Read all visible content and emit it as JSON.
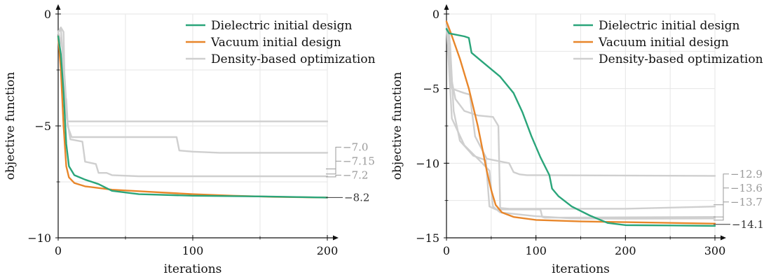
{
  "colors": {
    "dielectric": "#2aa57a",
    "vacuum": "#e8862a",
    "density": "#cfcfcf",
    "grid": "#e6e6e6",
    "axis": "#111111",
    "label_gray": "#9a9a9a",
    "label_dark": "#333333"
  },
  "chart_data": [
    {
      "type": "line",
      "xlabel": "iterations",
      "ylabel": "objective function",
      "xlim": [
        0,
        200
      ],
      "ylim": [
        -10,
        0
      ],
      "xticks": [
        0,
        100,
        200
      ],
      "xtick_labels": [
        "0",
        "100",
        "200"
      ],
      "yticks": [
        0,
        -5,
        -10
      ],
      "ytick_labels": [
        "0",
        "−5",
        "−10"
      ],
      "grid": true,
      "legend_position": "top-right",
      "series": [
        {
          "name": "Dielectric initial design",
          "color_key": "dielectric",
          "points": [
            [
              0,
              -1.0
            ],
            [
              2,
              -1.8
            ],
            [
              4,
              -3.5
            ],
            [
              6,
              -5.8
            ],
            [
              8,
              -6.8
            ],
            [
              12,
              -7.2
            ],
            [
              20,
              -7.4
            ],
            [
              30,
              -7.6
            ],
            [
              40,
              -7.9
            ],
            [
              60,
              -8.05
            ],
            [
              100,
              -8.12
            ],
            [
              150,
              -8.15
            ],
            [
              200,
              -8.2
            ]
          ]
        },
        {
          "name": "Vacuum initial design",
          "color_key": "vacuum",
          "points": [
            [
              0,
              -1.0
            ],
            [
              2,
              -2.5
            ],
            [
              4,
              -5.0
            ],
            [
              6,
              -6.8
            ],
            [
              8,
              -7.3
            ],
            [
              12,
              -7.55
            ],
            [
              20,
              -7.7
            ],
            [
              40,
              -7.85
            ],
            [
              70,
              -7.95
            ],
            [
              100,
              -8.05
            ],
            [
              130,
              -8.12
            ],
            [
              160,
              -8.17
            ],
            [
              200,
              -8.2
            ]
          ]
        },
        {
          "name": "Density-based optimization",
          "color_key": "density",
          "points": [
            [
              0,
              -0.8
            ],
            [
              2,
              -0.6
            ],
            [
              4,
              -0.8
            ],
            [
              5,
              -3.8
            ],
            [
              6,
              -3.8
            ],
            [
              7,
              -4.8
            ],
            [
              200,
              -4.8
            ]
          ]
        },
        {
          "name": "",
          "color_key": "density",
          "points": [
            [
              0,
              -0.8
            ],
            [
              2,
              -0.7
            ],
            [
              5,
              -3.0
            ],
            [
              7,
              -5.0
            ],
            [
              10,
              -5.5
            ],
            [
              88,
              -5.5
            ],
            [
              90,
              -6.1
            ],
            [
              100,
              -6.15
            ],
            [
              120,
              -6.2
            ],
            [
              200,
              -6.2
            ]
          ]
        },
        {
          "name": "",
          "color_key": "density",
          "points": [
            [
              0,
              -0.8
            ],
            [
              3,
              -1.5
            ],
            [
              6,
              -4.5
            ],
            [
              9,
              -5.6
            ],
            [
              18,
              -5.7
            ],
            [
              20,
              -6.6
            ],
            [
              28,
              -6.7
            ],
            [
              30,
              -7.1
            ],
            [
              36,
              -7.1
            ],
            [
              40,
              -7.2
            ],
            [
              60,
              -7.25
            ],
            [
              200,
              -7.25
            ]
          ]
        }
      ],
      "end_labels": [
        {
          "text": "−7.0",
          "value": -7.0,
          "color_key": "label_gray"
        },
        {
          "text": "−7.15",
          "value": -7.15,
          "color_key": "label_gray"
        },
        {
          "text": "−7.2",
          "value": -7.2,
          "color_key": "label_gray"
        },
        {
          "text": "−8.2",
          "value": -8.2,
          "color_key": "label_dark"
        }
      ]
    },
    {
      "type": "line",
      "xlabel": "iterations",
      "ylabel": "objective function",
      "xlim": [
        0,
        300
      ],
      "ylim": [
        -15,
        0
      ],
      "xticks": [
        0,
        100,
        200,
        300
      ],
      "xtick_labels": [
        "0",
        "100",
        "200",
        "300"
      ],
      "yticks": [
        0,
        -5,
        -10,
        -15
      ],
      "ytick_labels": [
        "0",
        "−5",
        "−10",
        "−15"
      ],
      "grid": true,
      "legend_position": "top-right",
      "series": [
        {
          "name": "Dielectric initial design",
          "color_key": "dielectric",
          "points": [
            [
              0,
              -1.0
            ],
            [
              3,
              -1.3
            ],
            [
              20,
              -1.5
            ],
            [
              25,
              -1.6
            ],
            [
              28,
              -2.6
            ],
            [
              40,
              -3.2
            ],
            [
              60,
              -4.2
            ],
            [
              75,
              -5.3
            ],
            [
              85,
              -6.6
            ],
            [
              95,
              -8.2
            ],
            [
              105,
              -9.6
            ],
            [
              115,
              -10.8
            ],
            [
              118,
              -11.7
            ],
            [
              125,
              -12.2
            ],
            [
              140,
              -12.9
            ],
            [
              160,
              -13.5
            ],
            [
              180,
              -14.0
            ],
            [
              200,
              -14.15
            ],
            [
              250,
              -14.17
            ],
            [
              300,
              -14.2
            ]
          ]
        },
        {
          "name": "Vacuum initial design",
          "color_key": "vacuum",
          "points": [
            [
              0,
              -0.5
            ],
            [
              5,
              -1.3
            ],
            [
              15,
              -3.0
            ],
            [
              25,
              -5.0
            ],
            [
              35,
              -7.5
            ],
            [
              45,
              -10.5
            ],
            [
              50,
              -11.8
            ],
            [
              55,
              -12.8
            ],
            [
              62,
              -13.3
            ],
            [
              75,
              -13.6
            ],
            [
              100,
              -13.8
            ],
            [
              150,
              -13.9
            ],
            [
              200,
              -13.95
            ],
            [
              300,
              -14.05
            ]
          ]
        },
        {
          "name": "Density-based optimization",
          "color_key": "density",
          "points": [
            [
              0,
              -0.7
            ],
            [
              3,
              -1.2
            ],
            [
              6,
              -4.5
            ],
            [
              10,
              -5.7
            ],
            [
              20,
              -6.5
            ],
            [
              35,
              -6.8
            ],
            [
              52,
              -6.9
            ],
            [
              58,
              -7.5
            ],
            [
              60,
              -13.0
            ],
            [
              70,
              -13.05
            ],
            [
              200,
              -13.05
            ],
            [
              300,
              -12.9
            ]
          ]
        },
        {
          "name": "",
          "color_key": "density",
          "points": [
            [
              0,
              -0.7
            ],
            [
              4,
              -2.0
            ],
            [
              8,
              -6.5
            ],
            [
              15,
              -8.5
            ],
            [
              30,
              -9.5
            ],
            [
              44,
              -9.8
            ],
            [
              48,
              -12.9
            ],
            [
              55,
              -13.1
            ],
            [
              105,
              -13.1
            ],
            [
              107,
              -13.6
            ],
            [
              110,
              -13.65
            ],
            [
              300,
              -13.6
            ]
          ]
        },
        {
          "name": "",
          "color_key": "density",
          "points": [
            [
              0,
              -0.7
            ],
            [
              6,
              -5.0
            ],
            [
              15,
              -5.2
            ],
            [
              20,
              -5.3
            ],
            [
              26,
              -5.4
            ],
            [
              32,
              -8.2
            ],
            [
              45,
              -9.7
            ],
            [
              70,
              -10.0
            ],
            [
              75,
              -10.6
            ],
            [
              82,
              -10.75
            ],
            [
              90,
              -10.8
            ],
            [
              300,
              -10.85
            ]
          ]
        },
        {
          "name": "",
          "color_key": "density",
          "points": [
            [
              0,
              -0.7
            ],
            [
              6,
              -7.0
            ],
            [
              20,
              -8.8
            ],
            [
              40,
              -10.0
            ],
            [
              48,
              -10.5
            ],
            [
              52,
              -12.9
            ],
            [
              60,
              -13.3
            ],
            [
              100,
              -13.55
            ],
            [
              140,
              -13.7
            ],
            [
              200,
              -13.72
            ],
            [
              300,
              -13.7
            ]
          ]
        }
      ],
      "end_labels": [
        {
          "text": "−12.9",
          "value": -12.9,
          "color_key": "label_gray"
        },
        {
          "text": "−13.6",
          "value": -13.6,
          "color_key": "label_gray"
        },
        {
          "text": "−13.7",
          "value": -13.7,
          "color_key": "label_gray"
        },
        {
          "text": "−14.1",
          "value": -14.1,
          "color_key": "label_dark"
        }
      ]
    }
  ]
}
